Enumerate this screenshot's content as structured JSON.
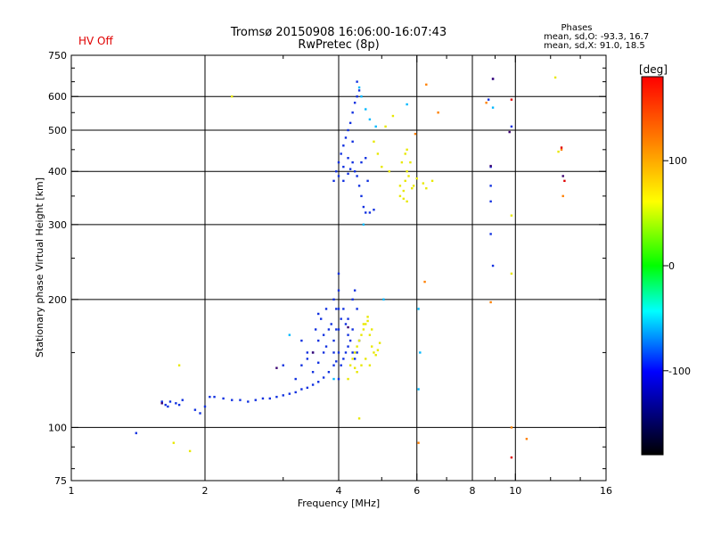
{
  "chart_data": {
    "type": "scatter",
    "title": "Tromsø 20150908 16:06:00-16:07:43",
    "subtitle": "RwPretec (8p)",
    "status": "HV Off",
    "status_color": "#e00000",
    "phases": {
      "header": "Phases",
      "o_line": "mean, sd,O: -93.3, 16.7",
      "x_line": "mean, sd,X:  91.0, 18.5"
    },
    "xlabel": "Frequency [MHz]",
    "ylabel": "Stationary phase Virtual Height [km]",
    "x_scale": "log",
    "y_scale": "log",
    "xlim": [
      1,
      16
    ],
    "ylim": [
      75,
      750
    ],
    "x_ticks": [
      1,
      2,
      4,
      6,
      8,
      10,
      16
    ],
    "y_ticks": [
      75,
      100,
      200,
      300,
      400,
      500,
      600,
      750
    ],
    "x_grid": [
      2,
      4,
      6,
      8,
      10
    ],
    "y_grid": [
      100,
      200,
      300,
      400,
      500,
      600
    ],
    "colorbar": {
      "label": "[deg]",
      "range": [
        -180,
        180
      ],
      "ticks": [
        100,
        0,
        -100
      ],
      "colors": [
        "#ff0000",
        "#ff8000",
        "#ffff00",
        "#00ff00",
        "#00ffff",
        "#0000ff",
        "#000000"
      ]
    },
    "series": [
      {
        "color": "#1030e0",
        "points": [
          [
            1.4,
            97
          ],
          [
            1.6,
            115
          ],
          [
            1.63,
            113
          ],
          [
            1.65,
            112
          ],
          [
            1.67,
            115
          ],
          [
            1.72,
            114
          ],
          [
            1.75,
            113
          ],
          [
            1.78,
            116
          ],
          [
            1.9,
            110
          ],
          [
            1.95,
            108
          ],
          [
            2.0,
            112
          ],
          [
            2.05,
            118
          ],
          [
            2.1,
            118
          ],
          [
            2.2,
            117
          ],
          [
            2.3,
            116
          ],
          [
            2.4,
            116
          ],
          [
            2.5,
            115
          ],
          [
            2.6,
            116
          ],
          [
            2.7,
            117
          ],
          [
            2.8,
            117
          ],
          [
            2.9,
            118
          ],
          [
            3.0,
            119
          ],
          [
            3.1,
            120
          ],
          [
            3.2,
            121
          ],
          [
            3.3,
            123
          ],
          [
            3.4,
            124
          ],
          [
            3.5,
            126
          ],
          [
            3.6,
            128
          ],
          [
            3.7,
            131
          ],
          [
            3.8,
            135
          ],
          [
            3.9,
            140
          ],
          [
            3.95,
            143
          ],
          [
            3.2,
            130
          ],
          [
            3.3,
            140
          ],
          [
            3.4,
            145
          ],
          [
            3.5,
            150
          ],
          [
            3.6,
            160
          ],
          [
            3.7,
            165
          ],
          [
            3.8,
            170
          ],
          [
            3.85,
            175
          ],
          [
            3.5,
            135
          ],
          [
            3.6,
            142
          ],
          [
            3.7,
            150
          ],
          [
            3.75,
            155
          ],
          [
            3.4,
            150
          ],
          [
            3.55,
            170
          ],
          [
            3.65,
            180
          ],
          [
            3.75,
            190
          ],
          [
            3.0,
            140
          ],
          [
            3.3,
            160
          ],
          [
            3.6,
            185
          ],
          [
            3.9,
            200
          ],
          [
            3.9,
            160
          ],
          [
            3.9,
            150
          ],
          [
            3.95,
            170
          ],
          [
            3.95,
            190
          ],
          [
            4.0,
            130
          ],
          [
            4.0,
            150
          ],
          [
            4.0,
            170
          ],
          [
            4.0,
            190
          ],
          [
            4.0,
            210
          ],
          [
            4.0,
            230
          ],
          [
            4.05,
            140
          ],
          [
            4.05,
            180
          ],
          [
            4.1,
            145
          ],
          [
            4.15,
            150
          ],
          [
            4.2,
            155
          ],
          [
            4.25,
            160
          ],
          [
            4.3,
            150
          ],
          [
            4.35,
            145
          ],
          [
            4.4,
            150
          ],
          [
            4.45,
            160
          ],
          [
            4.1,
            190
          ],
          [
            4.2,
            180
          ],
          [
            4.3,
            200
          ],
          [
            4.35,
            210
          ],
          [
            4.4,
            190
          ],
          [
            4.3,
            170
          ],
          [
            4.2,
            165
          ],
          [
            4.15,
            175
          ],
          [
            3.9,
            380
          ],
          [
            3.95,
            400
          ],
          [
            4.0,
            420
          ],
          [
            4.0,
            390
          ],
          [
            4.05,
            440
          ],
          [
            4.1,
            460
          ],
          [
            4.1,
            410
          ],
          [
            4.15,
            480
          ],
          [
            4.2,
            500
          ],
          [
            4.2,
            430
          ],
          [
            4.25,
            520
          ],
          [
            4.3,
            550
          ],
          [
            4.3,
            470
          ],
          [
            4.35,
            580
          ],
          [
            4.4,
            600
          ],
          [
            4.4,
            650
          ],
          [
            4.45,
            620
          ],
          [
            4.3,
            420
          ],
          [
            4.35,
            400
          ],
          [
            4.4,
            390
          ],
          [
            4.45,
            370
          ],
          [
            4.5,
            350
          ],
          [
            4.55,
            330
          ],
          [
            4.6,
            320
          ],
          [
            4.7,
            320
          ],
          [
            4.8,
            325
          ],
          [
            4.5,
            420
          ],
          [
            4.6,
            430
          ],
          [
            4.65,
            380
          ],
          [
            4.1,
            380
          ],
          [
            4.2,
            395
          ],
          [
            4.25,
            405
          ],
          [
            8.8,
            410
          ],
          [
            8.8,
            370
          ],
          [
            8.8,
            340
          ],
          [
            8.8,
            285
          ],
          [
            8.9,
            240
          ],
          [
            8.9,
            660
          ],
          [
            8.7,
            590
          ],
          [
            9.8,
            510
          ]
        ]
      },
      {
        "color": "#00b8ff",
        "points": [
          [
            4.45,
            630
          ],
          [
            4.5,
            600
          ],
          [
            4.6,
            560
          ],
          [
            4.7,
            530
          ],
          [
            4.85,
            510
          ],
          [
            4.55,
            300
          ],
          [
            5.05,
            200
          ],
          [
            6.05,
            190
          ],
          [
            6.1,
            150
          ],
          [
            6.05,
            123
          ],
          [
            3.1,
            165
          ],
          [
            3.9,
            130
          ],
          [
            8.9,
            565
          ],
          [
            5.7,
            575
          ]
        ]
      },
      {
        "color": "#e8e800",
        "points": [
          [
            4.2,
            130
          ],
          [
            4.25,
            140
          ],
          [
            4.3,
            145
          ],
          [
            4.35,
            150
          ],
          [
            4.4,
            155
          ],
          [
            4.45,
            160
          ],
          [
            4.5,
            165
          ],
          [
            4.55,
            170
          ],
          [
            4.6,
            175
          ],
          [
            4.65,
            178
          ],
          [
            4.7,
            165
          ],
          [
            4.75,
            155
          ],
          [
            4.8,
            150
          ],
          [
            4.85,
            148
          ],
          [
            4.9,
            152
          ],
          [
            4.95,
            158
          ],
          [
            4.5,
            140
          ],
          [
            4.6,
            145
          ],
          [
            4.7,
            140
          ],
          [
            4.4,
            135
          ],
          [
            4.35,
            138
          ],
          [
            4.55,
            175
          ],
          [
            4.65,
            182
          ],
          [
            4.75,
            170
          ],
          [
            5.5,
            350
          ],
          [
            5.6,
            360
          ],
          [
            5.65,
            380
          ],
          [
            5.7,
            400
          ],
          [
            5.55,
            420
          ],
          [
            5.65,
            440
          ],
          [
            5.7,
            450
          ],
          [
            5.8,
            420
          ],
          [
            5.75,
            390
          ],
          [
            5.85,
            365
          ],
          [
            5.9,
            370
          ],
          [
            6.0,
            385
          ],
          [
            6.2,
            375
          ],
          [
            6.3,
            365
          ],
          [
            6.5,
            380
          ],
          [
            5.5,
            370
          ],
          [
            5.6,
            345
          ],
          [
            5.7,
            340
          ],
          [
            4.8,
            470
          ],
          [
            4.9,
            440
          ],
          [
            5.0,
            410
          ],
          [
            5.2,
            400
          ],
          [
            5.1,
            510
          ],
          [
            5.3,
            540
          ],
          [
            2.3,
            600
          ],
          [
            1.85,
            88
          ],
          [
            1.7,
            92
          ],
          [
            1.75,
            140
          ],
          [
            4.45,
            105
          ],
          [
            9.8,
            230
          ],
          [
            9.8,
            315
          ],
          [
            12.5,
            445
          ],
          [
            12.3,
            665
          ]
        ]
      },
      {
        "color": "#ff8000",
        "points": [
          [
            6.3,
            640
          ],
          [
            6.25,
            220
          ],
          [
            6.05,
            92
          ],
          [
            8.6,
            580
          ],
          [
            8.8,
            197
          ],
          [
            9.8,
            100
          ],
          [
            10.6,
            94
          ],
          [
            12.8,
            350
          ],
          [
            12.7,
            450
          ],
          [
            6.7,
            550
          ],
          [
            5.95,
            490
          ]
        ]
      },
      {
        "color": "#e00000",
        "points": [
          [
            9.8,
            85
          ],
          [
            9.8,
            590
          ],
          [
            12.7,
            455
          ],
          [
            12.9,
            380
          ]
        ]
      },
      {
        "color": "#3a0070",
        "points": [
          [
            1.6,
            114
          ],
          [
            2.9,
            138
          ],
          [
            3.5,
            150
          ],
          [
            4.2,
            172
          ],
          [
            9.7,
            495
          ],
          [
            8.9,
            660
          ],
          [
            12.8,
            390
          ],
          [
            8.8,
            412
          ]
        ]
      }
    ]
  }
}
